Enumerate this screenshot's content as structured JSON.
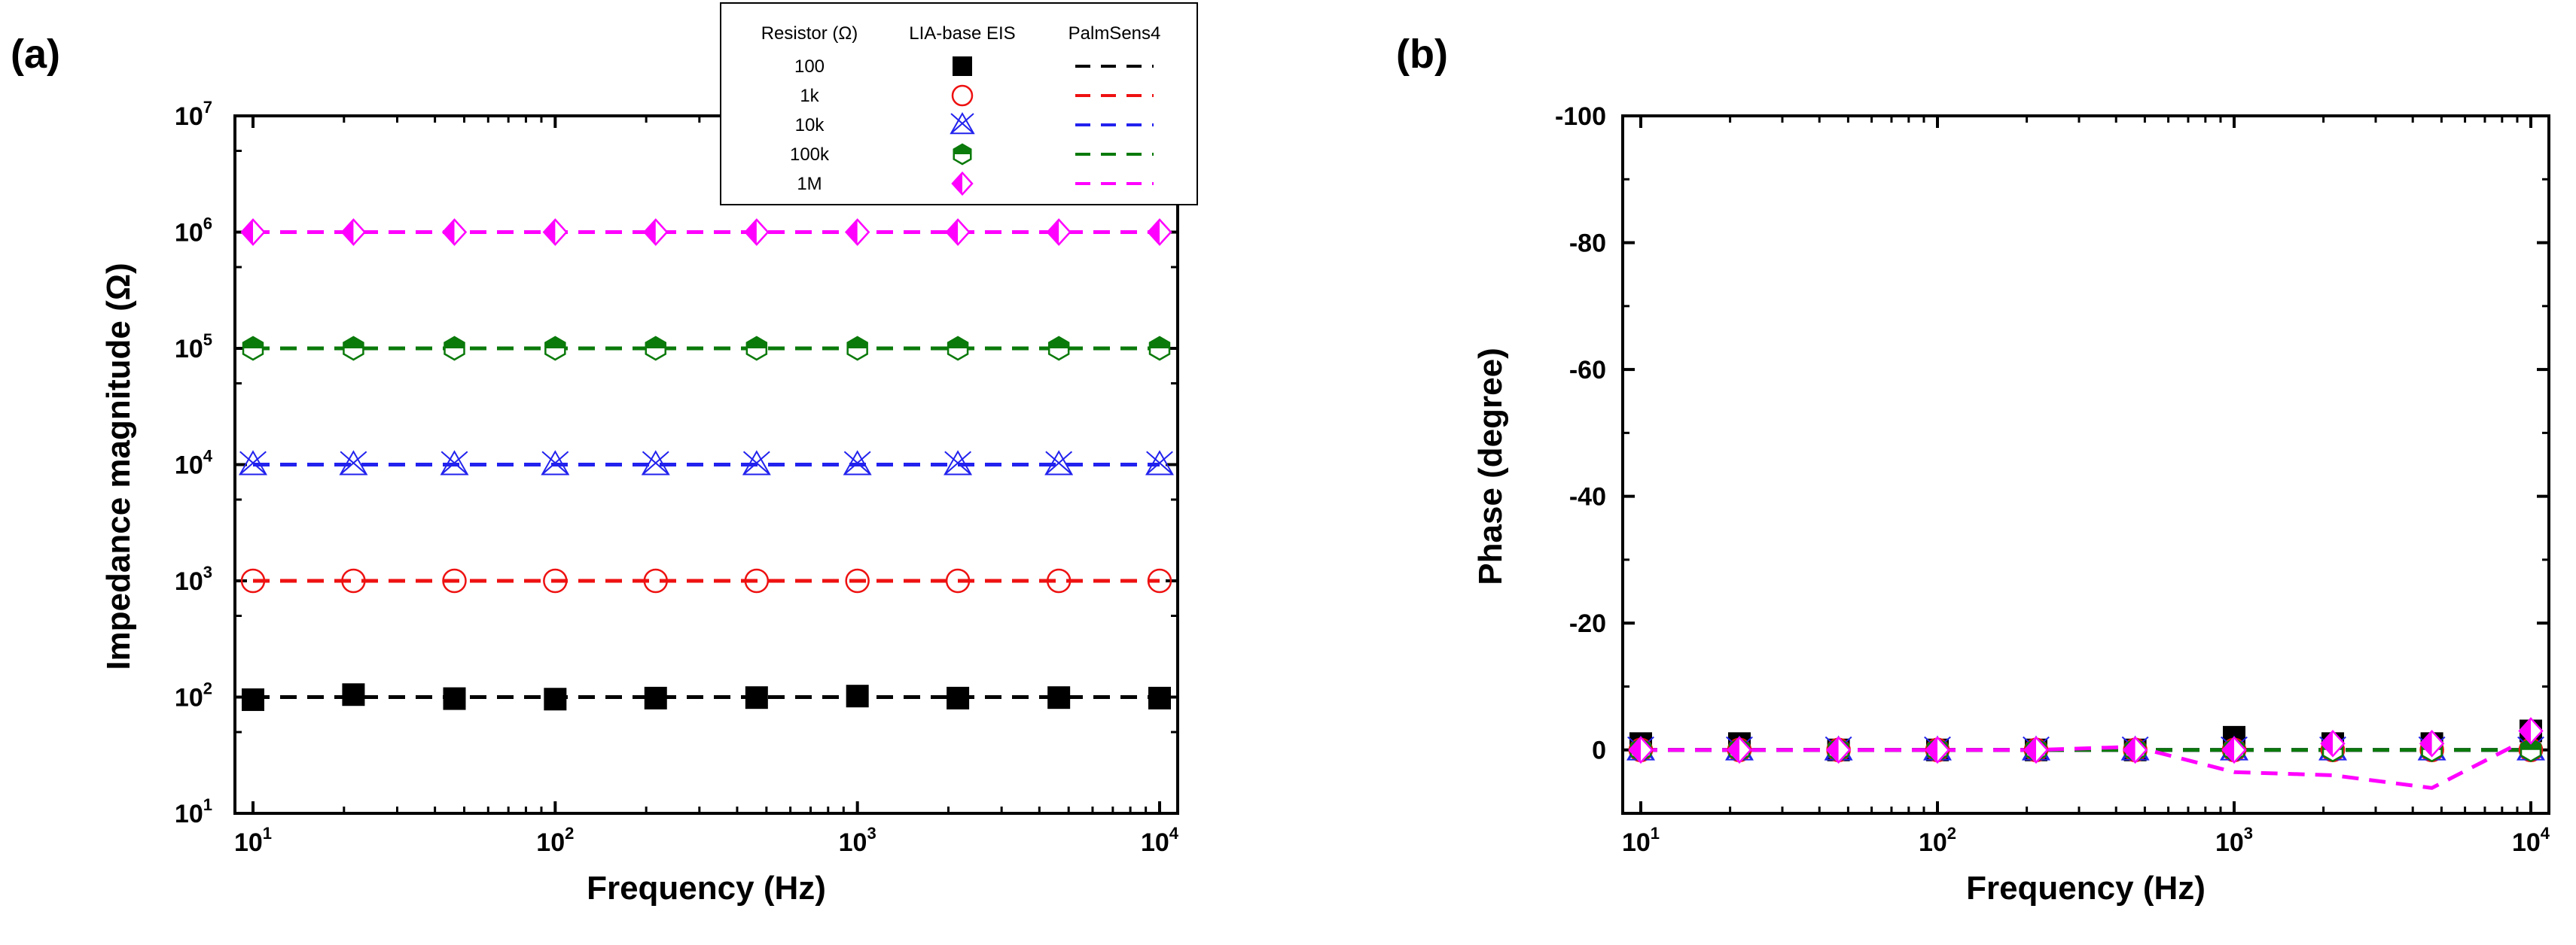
{
  "chart_data": [
    {
      "panel": "(a)",
      "type": "scatter",
      "xscale": "log",
      "yscale": "log",
      "xlabel": "Frequency (Hz)",
      "ylabel": "Impedance magnitude (Ω)",
      "xlim": [
        10,
        10000
      ],
      "ylim": [
        10,
        10000000
      ],
      "x_ticks": [
        {
          "base": "10",
          "exp": "1"
        },
        {
          "base": "10",
          "exp": "2"
        },
        {
          "base": "10",
          "exp": "3"
        },
        {
          "base": "10",
          "exp": "4"
        }
      ],
      "y_ticks": [
        {
          "base": "10",
          "exp": "1"
        },
        {
          "base": "10",
          "exp": "2"
        },
        {
          "base": "10",
          "exp": "3"
        },
        {
          "base": "10",
          "exp": "4"
        },
        {
          "base": "10",
          "exp": "5"
        },
        {
          "base": "10",
          "exp": "6"
        },
        {
          "base": "10",
          "exp": "7"
        }
      ],
      "x": [
        10,
        21.5,
        46.4,
        100,
        215,
        464,
        1000,
        2150,
        4640,
        10000
      ],
      "legend": {
        "placement": "top-right",
        "headers": [
          "Resistor (Ω)",
          "LIA-base EIS",
          "PalmSens4"
        ]
      },
      "series": [
        {
          "name": "100",
          "color": "#000000",
          "marker": "filled-square",
          "eis": [
            95,
            105,
            97,
            96,
            98,
            99,
            102,
            98,
            99,
            98
          ],
          "palmsens": [
            100,
            100,
            100,
            100,
            100,
            100,
            100,
            100,
            100,
            100
          ]
        },
        {
          "name": "1k",
          "color": "#ee1111",
          "marker": "open-circle",
          "eis": [
            1000,
            1000,
            1000,
            1000,
            1000,
            1000,
            1000,
            1000,
            1000,
            1000
          ],
          "palmsens": [
            1000,
            1000,
            1000,
            1000,
            1000,
            1000,
            1000,
            1000,
            1000,
            1000
          ]
        },
        {
          "name": "10k",
          "color": "#2222ee",
          "marker": "triangle-x",
          "eis": [
            10000,
            10000,
            10000,
            10000,
            10000,
            10000,
            10000,
            10000,
            10000,
            10000
          ],
          "palmsens": [
            10000,
            10000,
            10000,
            10000,
            10000,
            10000,
            10000,
            10000,
            10000,
            10000
          ]
        },
        {
          "name": "100k",
          "color": "#0a7a0a",
          "marker": "half-hexagon",
          "eis": [
            100000,
            100000,
            100000,
            100000,
            100000,
            100000,
            100000,
            100000,
            100000,
            100000
          ],
          "palmsens": [
            100000,
            100000,
            100000,
            100000,
            100000,
            100000,
            100000,
            100000,
            100000,
            100000
          ]
        },
        {
          "name": "1M",
          "color": "#ff00ff",
          "marker": "half-diamond",
          "eis": [
            1000000,
            1000000,
            1000000,
            1000000,
            1000000,
            1000000,
            1000000,
            1000000,
            1000000,
            1000000
          ],
          "palmsens": [
            1000000,
            1000000,
            1000000,
            1000000,
            1000000,
            1000000,
            1000000,
            1000000,
            1000000,
            1000000
          ]
        }
      ]
    },
    {
      "panel": "(b)",
      "type": "scatter",
      "xscale": "log",
      "xlabel": "Frequency (Hz)",
      "ylabel": "Phase (degree)",
      "xlim": [
        10,
        10000
      ],
      "ylim": [
        10,
        -100
      ],
      "y_inverted": true,
      "x_ticks": [
        {
          "base": "10",
          "exp": "1"
        },
        {
          "base": "10",
          "exp": "2"
        },
        {
          "base": "10",
          "exp": "3"
        },
        {
          "base": "10",
          "exp": "4"
        }
      ],
      "y_ticks": [
        {
          "value": 0,
          "label": "0"
        },
        {
          "value": -20,
          "label": "-20"
        },
        {
          "value": -40,
          "label": "-40"
        },
        {
          "value": -60,
          "label": "-60"
        },
        {
          "value": -80,
          "label": "-80"
        },
        {
          "value": -100,
          "label": "-100"
        }
      ],
      "x": [
        10,
        21.5,
        46.4,
        100,
        215,
        464,
        1000,
        2150,
        4640,
        10000
      ],
      "series": [
        {
          "name": "100",
          "color": "#000000",
          "marker": "filled-square",
          "eis": [
            -1,
            -1,
            0,
            0,
            0,
            0,
            -2,
            -1,
            -1,
            -3
          ],
          "palmsens": [
            0,
            0,
            0,
            0,
            0,
            0,
            0,
            0,
            0,
            0
          ]
        },
        {
          "name": "1k",
          "color": "#ee1111",
          "marker": "open-circle",
          "eis": [
            0,
            0,
            0,
            0,
            0,
            0,
            0,
            0,
            0,
            0
          ],
          "palmsens": [
            0,
            0,
            0,
            0,
            0,
            0,
            0,
            0,
            0,
            0
          ]
        },
        {
          "name": "10k",
          "color": "#2222ee",
          "marker": "triangle-x",
          "eis": [
            0,
            0,
            0,
            0,
            0,
            0,
            0,
            0,
            0,
            0
          ],
          "palmsens": [
            0,
            0,
            0,
            0,
            0,
            0,
            0,
            0,
            0,
            0
          ]
        },
        {
          "name": "100k",
          "color": "#0a7a0a",
          "marker": "half-hexagon",
          "eis": [
            0,
            0,
            0,
            0,
            0,
            0,
            0,
            0,
            0,
            0
          ],
          "palmsens": [
            0,
            0,
            0,
            0,
            0,
            0,
            0,
            0,
            0,
            0
          ]
        },
        {
          "name": "1M",
          "color": "#ff00ff",
          "marker": "half-diamond",
          "eis": [
            0,
            0,
            0,
            0,
            0,
            0,
            0,
            -1,
            -1,
            -3
          ],
          "palmsens": [
            0,
            0,
            0,
            0,
            0,
            -0.5,
            3.5,
            4,
            6,
            -2
          ]
        }
      ]
    }
  ]
}
